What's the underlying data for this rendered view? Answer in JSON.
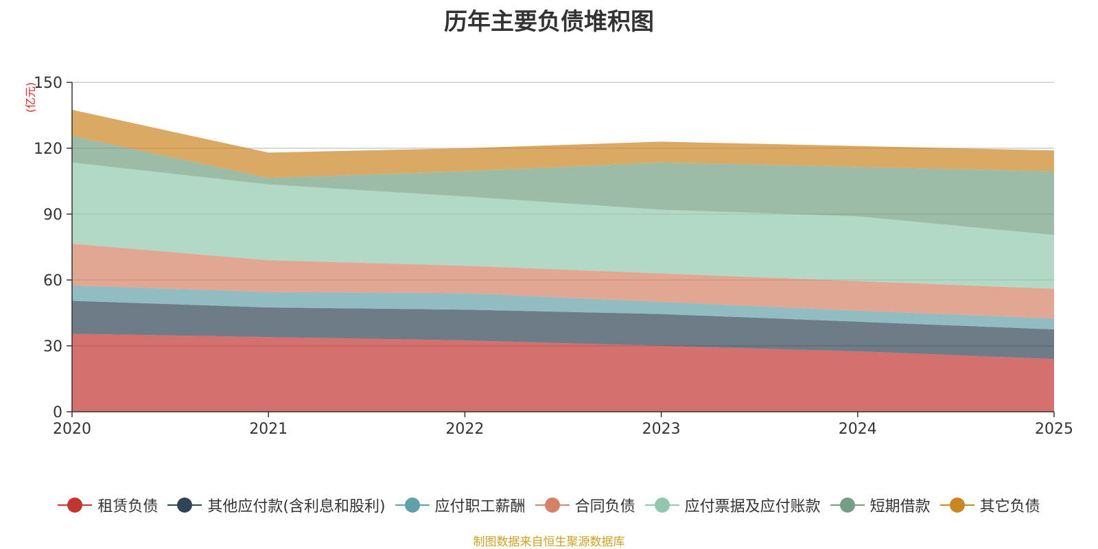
{
  "chart_data": {
    "type": "area",
    "stacked": true,
    "title": "历年主要负债堆积图",
    "unit_label": "(亿元)",
    "categories": [
      "2020",
      "2021",
      "2022",
      "2023",
      "2024",
      "2025"
    ],
    "ylim": [
      0,
      150
    ],
    "yticks": [
      0,
      30,
      60,
      90,
      120,
      150
    ],
    "grid": true,
    "legend_position": "bottom",
    "series": [
      {
        "name": "租赁负债",
        "color": "#c23531",
        "values": [
          35.5,
          34,
          32.5,
          30,
          27.5,
          24
        ]
      },
      {
        "name": "其他应付款(含利息和股利)",
        "color": "#2f4554",
        "values": [
          15,
          13.5,
          14,
          14.5,
          13.5,
          13.5
        ]
      },
      {
        "name": "应付职工薪酬",
        "color": "#61a0a8",
        "values": [
          7,
          7,
          7.5,
          5.5,
          5,
          5
        ]
      },
      {
        "name": "合同负债",
        "color": "#d48265",
        "values": [
          19,
          14.5,
          12.5,
          13,
          13.5,
          13.5
        ]
      },
      {
        "name": "应付票据及应付账款",
        "color": "#91c7ae",
        "values": [
          37,
          34.5,
          31.5,
          29,
          29.5,
          24.5
        ]
      },
      {
        "name": "短期借款",
        "color": "#749f83",
        "values": [
          12,
          3,
          11.5,
          21.5,
          22.5,
          29
        ]
      },
      {
        "name": "其它负债",
        "color": "#ca8622",
        "values": [
          12,
          11.5,
          10.5,
          9.5,
          9.5,
          9.5
        ]
      }
    ]
  },
  "source_note": "制图数据来自恒生聚源数据库",
  "source_note_color": "#c9a227",
  "unit_label_color": "#e0221e",
  "area_opacity": 0.7
}
